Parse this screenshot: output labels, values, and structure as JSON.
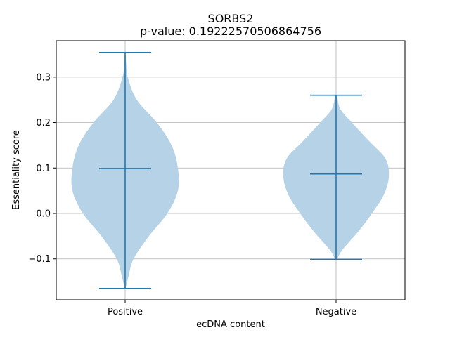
{
  "chart_data": {
    "type": "violin",
    "title": "SORBS2",
    "subtitle": "p-value: 0.19222570506864756",
    "xlabel": "ecDNA content",
    "ylabel": "Essentiality score",
    "categories": [
      "Positive",
      "Negative"
    ],
    "ylim": [
      -0.19,
      0.38
    ],
    "yticks": [
      -0.1,
      0.0,
      0.1,
      0.2,
      0.3
    ],
    "ytick_labels": [
      "−0.1",
      "0.0",
      "0.1",
      "0.2",
      "0.3"
    ],
    "grid": true,
    "violins": [
      {
        "category": "Positive",
        "min": -0.165,
        "median": 0.099,
        "max": 0.354,
        "density": [
          [
            -0.165,
            0.01
          ],
          [
            -0.14,
            0.06
          ],
          [
            -0.1,
            0.16
          ],
          [
            -0.05,
            0.45
          ],
          [
            0.0,
            0.8
          ],
          [
            0.05,
            1.0
          ],
          [
            0.1,
            1.0
          ],
          [
            0.15,
            0.88
          ],
          [
            0.2,
            0.6
          ],
          [
            0.25,
            0.22
          ],
          [
            0.3,
            0.05
          ],
          [
            0.33,
            0.02
          ],
          [
            0.354,
            0.01
          ]
        ]
      },
      {
        "category": "Negative",
        "min": -0.101,
        "median": 0.087,
        "max": 0.26,
        "density": [
          [
            -0.101,
            0.02
          ],
          [
            -0.08,
            0.12
          ],
          [
            -0.04,
            0.42
          ],
          [
            0.0,
            0.68
          ],
          [
            0.04,
            0.9
          ],
          [
            0.08,
            1.0
          ],
          [
            0.12,
            0.94
          ],
          [
            0.16,
            0.62
          ],
          [
            0.2,
            0.3
          ],
          [
            0.23,
            0.08
          ],
          [
            0.26,
            0.02
          ]
        ]
      }
    ],
    "colors": {
      "body": "#b5d2e7",
      "lines": "#1f77b4",
      "grid": "#b0b0b0",
      "axis": "#000000"
    }
  }
}
